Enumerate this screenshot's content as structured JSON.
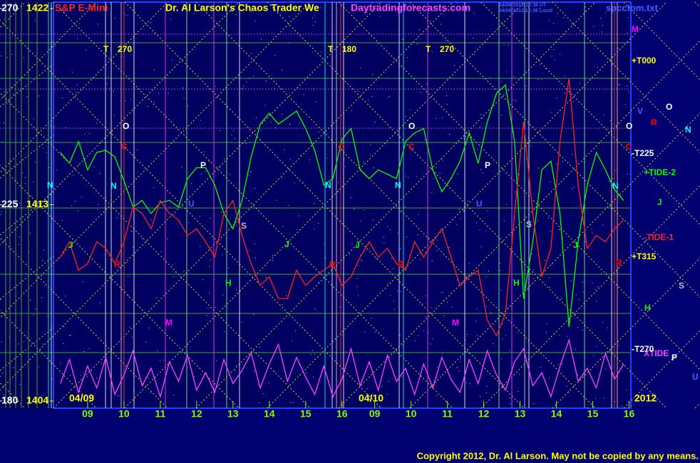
{
  "chart_data": {
    "type": "line",
    "header": {
      "instrument": "S&P E-Mini",
      "title": "Dr. Al Larson's Chaos Trader We",
      "site": "Daytradingforecasts.com",
      "stamp1": "04/06/2012 20:36 UT",
      "stamp2": "04/06/2012 16:36 Local",
      "file": "spcctom.txt"
    },
    "copyright": "Copyright 2012, Dr. Al Larson. May not be copied by any means.",
    "x": [
      -0.75,
      -0.5,
      -0.25,
      0,
      0.25,
      0.5,
      0.75,
      1,
      1.25,
      1.5,
      1.75,
      2,
      2.25,
      2.5,
      2.75,
      3,
      3.25,
      3.5,
      3.75,
      4,
      4.25,
      4.5,
      4.75,
      5,
      5.25,
      5.5,
      5.75,
      6,
      6.25,
      6.5,
      6.75,
      7,
      7.25,
      7.5,
      7.75,
      8,
      8.25,
      8.5,
      8.75,
      9,
      9.25,
      9.5,
      9.75,
      10,
      10.25,
      10.5,
      10.75,
      11,
      11.25,
      11.5,
      11.75,
      12,
      12.25,
      12.5,
      12.75,
      13,
      13.25,
      13.5,
      13.75,
      14,
      14.25,
      14.5,
      14.75
    ],
    "xlim": [
      -0.94,
      14.95
    ],
    "xticks": [
      {
        "value": 0,
        "label": "09"
      },
      {
        "value": 1,
        "label": "10"
      },
      {
        "value": 2,
        "label": "11"
      },
      {
        "value": 3,
        "label": "12"
      },
      {
        "value": 4,
        "label": "13"
      },
      {
        "value": 5,
        "label": "14"
      },
      {
        "value": 6,
        "label": "15"
      },
      {
        "value": 7,
        "label": "16"
      },
      {
        "value": 7.9,
        "label": "09"
      },
      {
        "value": 8.9,
        "label": "10"
      },
      {
        "value": 9.9,
        "label": "11"
      },
      {
        "value": 10.9,
        "label": "12"
      },
      {
        "value": 11.9,
        "label": "13"
      },
      {
        "value": 12.9,
        "label": "14"
      },
      {
        "value": 13.9,
        "label": "15"
      },
      {
        "value": 14.9,
        "label": "16"
      }
    ],
    "ylim": [
      1404,
      1422
    ],
    "yticks": [
      1404,
      1413,
      1422
    ],
    "y2lim": [
      180,
      270
    ],
    "y2ticks": [
      180,
      225,
      270
    ],
    "series": [
      {
        "name": "+TIDE-2",
        "color": "#00ff00",
        "values": [
          1415.4,
          1414.9,
          1415.9,
          1414.6,
          1415.4,
          1415.5,
          1415.2,
          1414.1,
          1412.9,
          1413.2,
          1412.6,
          1413.1,
          1413.2,
          1412.9,
          1414.2,
          1414.7,
          1414.7,
          1413.9,
          1412.6,
          1411.9,
          1413.2,
          1415.2,
          1416.7,
          1417.2,
          1416.7,
          1417.0,
          1417.3,
          1416.5,
          1415.5,
          1413.9,
          1414.2,
          1416.0,
          1416.5,
          1414.6,
          1414.2,
          1414.6,
          1414.4,
          1414.2,
          1415.9,
          1416.3,
          1416.5,
          1414.6,
          1413.6,
          1414.2,
          1415.0,
          1416.3,
          1414.9,
          1416.8,
          1418.1,
          1418.5,
          1415.9,
          1408.7,
          1411.3,
          1414.6,
          1415.0,
          1412.6,
          1407.4,
          1411.3,
          1413.9,
          1415.4,
          1414.6,
          1413.7,
          1413.2
        ]
      },
      {
        "name": "-TIDE-1",
        "color": "#ff2020",
        "values": [
          1410.6,
          1411.3,
          1410.0,
          1410.3,
          1411.3,
          1411.0,
          1410.3,
          1411.3,
          1412.9,
          1412.6,
          1411.9,
          1413.2,
          1412.6,
          1412.3,
          1411.6,
          1411.9,
          1411.3,
          1410.6,
          1412.6,
          1413.2,
          1411.6,
          1410.3,
          1409.3,
          1409.7,
          1408.7,
          1408.7,
          1410.0,
          1409.3,
          1409.7,
          1410.0,
          1410.3,
          1409.3,
          1409.7,
          1410.6,
          1411.3,
          1410.6,
          1411.0,
          1410.3,
          1410.0,
          1411.3,
          1410.6,
          1411.3,
          1411.9,
          1410.6,
          1409.3,
          1409.7,
          1410.0,
          1407.7,
          1407.0,
          1408.0,
          1412.6,
          1416.8,
          1412.6,
          1409.7,
          1411.0,
          1415.9,
          1418.8,
          1413.9,
          1411.0,
          1411.6,
          1411.3,
          1411.9,
          1412.3
        ]
      },
      {
        "name": "XTIDE",
        "color": "#ff40ff",
        "values": [
          1404.8,
          1405.9,
          1404.4,
          1405.6,
          1404.6,
          1406.0,
          1404.3,
          1405.2,
          1406.3,
          1404.7,
          1405.5,
          1404.2,
          1405.8,
          1404.9,
          1406.1,
          1404.5,
          1405.3,
          1404.4,
          1405.9,
          1404.8,
          1405.4,
          1406.2,
          1404.6,
          1405.7,
          1406.6,
          1404.9,
          1406.0,
          1405.1,
          1404.3,
          1405.6,
          1404.2,
          1405.0,
          1406.4,
          1404.7,
          1405.8,
          1404.5,
          1406.1,
          1404.9,
          1405.5,
          1404.3,
          1405.7,
          1404.6,
          1406.0,
          1405.0,
          1404.4,
          1405.9,
          1404.8,
          1406.3,
          1405.2,
          1404.5,
          1405.8,
          1406.4,
          1404.7,
          1405.3,
          1404.2,
          1405.6,
          1406.8,
          1404.9,
          1405.5,
          1404.6,
          1406.2,
          1405.0,
          1405.7
        ]
      }
    ],
    "annotations": [
      {
        "text": "T",
        "color": "#ffff00"
      },
      {
        "text": "270",
        "color": "#ffff00"
      },
      {
        "text": "T",
        "color": "#ffff00"
      },
      {
        "text": "180",
        "color": "#ffff00"
      },
      {
        "text": "T",
        "color": "#ffff00"
      },
      {
        "text": "270",
        "color": "#ffff00"
      },
      {
        "text": "M",
        "color": "#ff00ff"
      },
      {
        "text": "+T000",
        "color": "#ffff00"
      },
      {
        "text": "V",
        "color": "#4060ff"
      },
      {
        "text": "O",
        "color": "#ffffff"
      },
      {
        "text": "R",
        "color": "#ff0000"
      },
      {
        "text": "N",
        "color": "#00ffff"
      },
      {
        "text": "O",
        "color": "#ffffff"
      },
      {
        "text": "C",
        "color": "#ff0000"
      },
      {
        "text": "-T225",
        "color": "#ffffff"
      },
      {
        "text": "J",
        "color": "#00ff00"
      },
      {
        "text": "+T315",
        "color": "#ffff00"
      },
      {
        "text": "S",
        "color": "#c0c0c0"
      },
      {
        "text": "H",
        "color": "#00ff00"
      },
      {
        "text": "-T270",
        "color": "#ffffff"
      },
      {
        "text": "P",
        "color": "#ffffff"
      },
      {
        "text": "U",
        "color": "#4060ff"
      },
      {
        "text": "04/09",
        "color": "#ffff00"
      },
      {
        "text": "04/10",
        "color": "#ffff00"
      },
      {
        "text": "2012",
        "color": "#ffff00"
      },
      {
        "text": "O",
        "color": "#ffffff"
      },
      {
        "text": "C",
        "color": "#ff0000"
      },
      {
        "text": "N",
        "color": "#00ffff"
      },
      {
        "text": "N",
        "color": "#00ffff"
      },
      {
        "text": "P",
        "color": "#ffffff"
      },
      {
        "text": "U",
        "color": "#4060ff"
      },
      {
        "text": "J",
        "color": "#00ff00"
      },
      {
        "text": "R",
        "color": "#ff0000"
      },
      {
        "text": "S",
        "color": "#c0c0c0"
      },
      {
        "text": "H",
        "color": "#00ff00"
      },
      {
        "text": "J",
        "color": "#00ff00"
      },
      {
        "text": "M",
        "color": "#ff00ff"
      },
      {
        "text": "C",
        "color": "#ff0000"
      },
      {
        "text": "O",
        "color": "#ffffff"
      },
      {
        "text": "C",
        "color": "#ff0000"
      },
      {
        "text": "N",
        "color": "#00ffff"
      },
      {
        "text": "N",
        "color": "#00ffff"
      },
      {
        "text": "P",
        "color": "#ffffff"
      },
      {
        "text": "U",
        "color": "#4060ff"
      },
      {
        "text": "J",
        "color": "#00ff00"
      },
      {
        "text": "R",
        "color": "#ff0000"
      },
      {
        "text": "R",
        "color": "#ff0000"
      },
      {
        "text": "S",
        "color": "#c0c0c0"
      },
      {
        "text": "H",
        "color": "#00ff00"
      },
      {
        "text": "J",
        "color": "#00ff00"
      },
      {
        "text": "M",
        "color": "#ff00ff"
      },
      {
        "text": "N",
        "color": "#00ffff"
      },
      {
        "text": "R",
        "color": "#ff0000"
      }
    ]
  }
}
